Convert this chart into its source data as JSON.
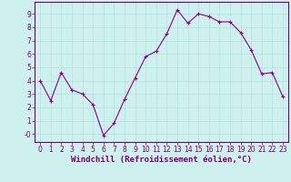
{
  "x": [
    0,
    1,
    2,
    3,
    4,
    5,
    6,
    7,
    8,
    9,
    10,
    11,
    12,
    13,
    14,
    15,
    16,
    17,
    18,
    19,
    20,
    21,
    22,
    23
  ],
  "y": [
    4.0,
    2.5,
    4.6,
    3.3,
    3.0,
    2.2,
    -0.1,
    0.8,
    2.6,
    4.2,
    5.8,
    6.2,
    7.5,
    9.3,
    8.3,
    9.0,
    8.8,
    8.4,
    8.4,
    7.6,
    6.3,
    4.5,
    4.6,
    2.8
  ],
  "line_color": "#880088",
  "marker": "+",
  "marker_size": 3,
  "linewidth": 0.8,
  "xlabel": "Windchill (Refroidissement éolien,°C)",
  "xlim": [
    -0.5,
    23.5
  ],
  "ylim": [
    -0.6,
    9.9
  ],
  "ytick_labels": [
    "9",
    "8",
    "7",
    "6",
    "5",
    "4",
    "3",
    "2",
    "1",
    "-0"
  ],
  "ytick_vals": [
    9,
    8,
    7,
    6,
    5,
    4,
    3,
    2,
    1,
    0
  ],
  "xticks": [
    0,
    1,
    2,
    3,
    4,
    5,
    6,
    7,
    8,
    9,
    10,
    11,
    12,
    13,
    14,
    15,
    16,
    17,
    18,
    19,
    20,
    21,
    22,
    23
  ],
  "bg_color": "#cef0ee",
  "grid_color": "#aaddda",
  "tick_fontsize": 5.5,
  "xlabel_fontsize": 6.5,
  "spine_color": "#770077",
  "tick_color": "#770077"
}
